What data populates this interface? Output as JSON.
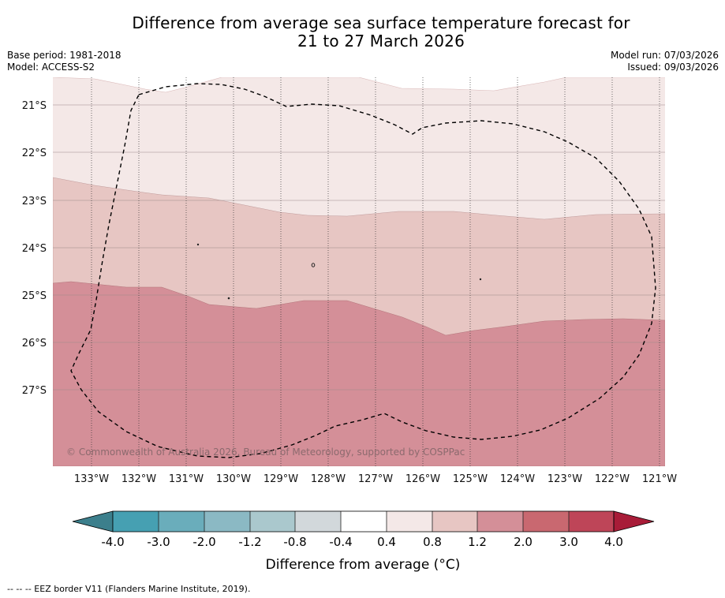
{
  "title": {
    "line1": "Difference from average sea surface temperature forecast for",
    "line2": "21 to 27 March 2026"
  },
  "meta": {
    "base_period": "Base period: 1981-2018",
    "model": "Model: ACCESS-S2",
    "model_run": "Model run: 07/03/2026",
    "issued": "Issued: 09/03/2026"
  },
  "map": {
    "lat_labels": [
      "21°S",
      "22°S",
      "23°S",
      "24°S",
      "25°S",
      "26°S",
      "27°S"
    ],
    "lon_labels": [
      "133°W",
      "132°W",
      "131°W",
      "130°W",
      "129°W",
      "128°W",
      "127°W",
      "126°W",
      "125°W",
      "124°W",
      "123°W",
      "122°W",
      "121°W"
    ],
    "copyright": "© Commonwealth of Australia 2026, Bureau of Meteorology, supported by COSPPac",
    "band_colors": {
      "0.4_0.8": "#f4e8e7",
      "0.8_1.2": "#e7c6c3",
      "1.2_2.0": "#d48f98"
    },
    "eez_line_color": "#000000"
  },
  "colorbar": {
    "tick_labels": [
      "-4.0",
      "-3.0",
      "-2.0",
      "-1.2",
      "-0.8",
      "-0.4",
      "0.4",
      "0.8",
      "1.2",
      "2.0",
      "3.0",
      "4.0"
    ],
    "colors": [
      "#3c7f8c",
      "#46a0b2",
      "#6aadbb",
      "#8bb9c4",
      "#aac8cd",
      "#d2d8db",
      "#ffffff",
      "#f4e8e7",
      "#e7c6c3",
      "#d48f98",
      "#c96870",
      "#be4558",
      "#a81c38"
    ],
    "label": "Difference from average (",
    "unit_symbol": "°C",
    "label_end": ")"
  },
  "footnote": "--  --  -- EEZ border V11 (Flanders Marine Institute, 2019)."
}
